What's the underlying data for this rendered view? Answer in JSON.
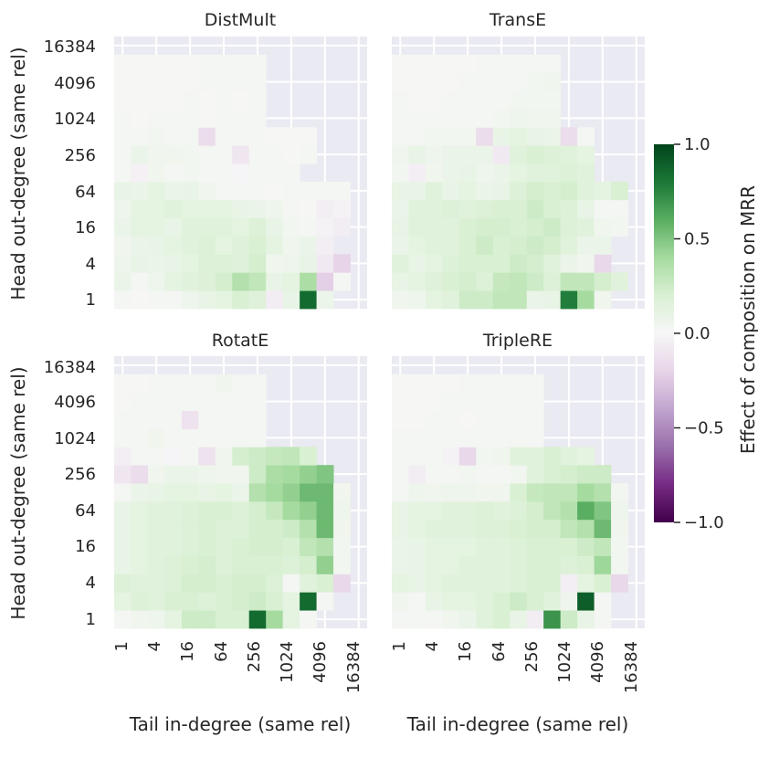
{
  "chart_data": {
    "type": "heatmap",
    "colormap": "PRGn",
    "vmin": -1.0,
    "vmax": 1.0,
    "ylabel": "Head out-degree (same rel)",
    "xlabel": "Tail in-degree (same rel)",
    "tick_labels": [
      "1",
      "4",
      "16",
      "64",
      "256",
      "1024",
      "4096",
      "16384"
    ],
    "colorbar": {
      "label": "Effect of composition on MRR",
      "ticks": [
        1.0,
        0.5,
        0.0,
        -0.5,
        -1.0
      ],
      "tick_labels": [
        "1.0",
        "0.5",
        "0.0",
        "−0.5",
        "−1.0"
      ]
    },
    "panels": [
      {
        "title": "DistMult",
        "rows": [
          [
            0.02,
            0.01,
            0.02,
            0.03,
            0.06,
            0.1,
            0.12,
            0.2,
            0.16,
            -0.06,
            0.1,
            0.85,
            0.07
          ],
          [
            0.08,
            0.03,
            0.06,
            0.12,
            0.15,
            0.17,
            0.22,
            0.35,
            0.3,
            0.1,
            0.12,
            0.38,
            -0.22,
            0.02
          ],
          [
            0.06,
            0.1,
            0.08,
            0.1,
            0.12,
            0.18,
            0.18,
            0.16,
            0.22,
            0.05,
            0.06,
            0.1,
            -0.08,
            -0.2
          ],
          [
            0.05,
            0.08,
            0.1,
            0.12,
            0.15,
            0.18,
            0.12,
            0.16,
            0.2,
            0.12,
            0.05,
            0.08,
            -0.05
          ],
          [
            0.08,
            0.12,
            0.12,
            0.1,
            0.15,
            0.15,
            0.15,
            0.12,
            0.18,
            0.1,
            0.04,
            0.02,
            -0.03,
            -0.06
          ],
          [
            0.06,
            0.12,
            0.12,
            0.15,
            0.12,
            0.12,
            0.12,
            0.1,
            0.08,
            0.06,
            0.03,
            0.01,
            -0.05,
            -0.03
          ],
          [
            0.1,
            0.08,
            0.12,
            0.08,
            0.1,
            0.05,
            0.03,
            0.02,
            0.02,
            0.01,
            0.02,
            0.02,
            0.03,
            0.02
          ],
          [
            0.02,
            -0.04,
            0.05,
            0.03,
            0.04,
            0.02,
            0.02,
            -0.02,
            0.02,
            0.02,
            0.02
          ],
          [
            0.03,
            0.08,
            0.05,
            0.05,
            0.04,
            0.02,
            0.02,
            -0.1,
            0.02,
            0.02,
            0.01,
            0.02
          ],
          [
            0.02,
            0.03,
            0.04,
            0.03,
            0.03,
            -0.15,
            0.02,
            0.02,
            0.02,
            0.01,
            0.01,
            0.01
          ],
          [
            0.02,
            0.01,
            0.02,
            0.02,
            0.02,
            0.01,
            0.02,
            0.02,
            0.02
          ],
          [
            0.01,
            0.01,
            0.01,
            0.01,
            0.02,
            0.01,
            0.02,
            0.01,
            0.02
          ],
          [
            0.01,
            0.01,
            0.01,
            0.01,
            0.01,
            0.02,
            0.02,
            0.03,
            0.02
          ],
          [
            0.01,
            0.01,
            0.01,
            0.01,
            0.01,
            0.02,
            0.02,
            0.02,
            0.02
          ]
        ]
      },
      {
        "title": "TransE",
        "rows": [
          [
            0.05,
            0.06,
            0.12,
            0.15,
            0.25,
            0.25,
            0.3,
            0.3,
            0.08,
            0.1,
            0.78,
            0.4,
            0.05
          ],
          [
            0.1,
            0.12,
            0.16,
            0.2,
            0.22,
            0.18,
            0.28,
            0.3,
            0.25,
            0.18,
            0.3,
            0.3,
            0.22,
            0.15
          ],
          [
            0.15,
            0.1,
            0.12,
            0.18,
            0.2,
            0.2,
            0.2,
            0.25,
            0.22,
            0.15,
            0.08,
            0.05,
            -0.18
          ],
          [
            0.08,
            0.12,
            0.15,
            0.15,
            0.2,
            0.25,
            0.2,
            0.22,
            0.25,
            0.22,
            0.15,
            0.08,
            0.08
          ],
          [
            0.1,
            0.15,
            0.15,
            0.15,
            0.2,
            0.22,
            0.22,
            0.2,
            0.22,
            0.25,
            0.18,
            0.15,
            0.05,
            0.04
          ],
          [
            0.08,
            0.15,
            0.15,
            0.18,
            0.15,
            0.18,
            0.2,
            0.2,
            0.25,
            0.2,
            0.18,
            0.1,
            0.02,
            0.02
          ],
          [
            0.1,
            0.1,
            0.15,
            0.1,
            0.12,
            0.08,
            0.1,
            0.18,
            0.22,
            0.2,
            0.22,
            0.15,
            0.12,
            0.2
          ],
          [
            0.04,
            -0.05,
            0.05,
            0.08,
            0.1,
            0.06,
            0.08,
            0.12,
            0.15,
            0.15,
            0.18,
            0.15
          ],
          [
            0.05,
            0.1,
            0.06,
            0.08,
            0.08,
            0.08,
            -0.08,
            0.15,
            0.2,
            0.18,
            0.15,
            0.12
          ],
          [
            0.02,
            0.03,
            0.04,
            0.04,
            0.04,
            -0.15,
            0.1,
            0.12,
            0.1,
            0.08,
            -0.15,
            0.02
          ],
          [
            0.02,
            0.02,
            0.02,
            0.02,
            0.02,
            0.03,
            0.04,
            0.06,
            0.05,
            0.05
          ],
          [
            0.02,
            0.01,
            0.01,
            0.02,
            0.02,
            0.02,
            0.03,
            0.04,
            0.04,
            0.04
          ],
          [
            0.01,
            0.01,
            0.01,
            0.01,
            0.02,
            0.02,
            0.03,
            0.03,
            0.04,
            0.05
          ],
          [
            0.01,
            0.01,
            0.01,
            0.01,
            0.01,
            0.02,
            0.02,
            0.02,
            0.03,
            0.03
          ]
        ]
      },
      {
        "title": "RotatE",
        "rows": [
          [
            0.03,
            0.05,
            0.06,
            0.12,
            0.25,
            0.25,
            0.2,
            0.2,
            0.85,
            0.4,
            0.12,
            0.02
          ],
          [
            0.12,
            0.18,
            0.15,
            0.2,
            0.2,
            0.18,
            0.2,
            0.22,
            0.25,
            0.2,
            0.12,
            0.85,
            0.02
          ],
          [
            0.18,
            0.15,
            0.15,
            0.18,
            0.22,
            0.22,
            0.2,
            0.22,
            0.22,
            0.18,
            0.02,
            0.15,
            0.2,
            -0.18
          ],
          [
            0.1,
            0.12,
            0.15,
            0.18,
            0.2,
            0.22,
            0.18,
            0.2,
            0.2,
            0.2,
            0.18,
            0.22,
            0.45,
            0.04
          ],
          [
            0.1,
            0.12,
            0.15,
            0.15,
            0.18,
            0.2,
            0.18,
            0.2,
            0.22,
            0.22,
            0.2,
            0.3,
            0.35,
            0.04
          ],
          [
            0.1,
            0.12,
            0.15,
            0.15,
            0.18,
            0.2,
            0.18,
            0.18,
            0.22,
            0.22,
            0.25,
            0.35,
            0.55,
            0.05
          ],
          [
            0.1,
            0.12,
            0.15,
            0.15,
            0.18,
            0.2,
            0.2,
            0.18,
            0.22,
            0.28,
            0.4,
            0.45,
            0.55,
            0.06
          ],
          [
            0.03,
            0.08,
            0.1,
            0.12,
            0.12,
            0.1,
            0.12,
            0.08,
            0.35,
            0.4,
            0.45,
            0.55,
            0.55,
            0.05
          ],
          [
            -0.1,
            -0.15,
            0.05,
            0.08,
            0.08,
            0.06,
            0.05,
            0.05,
            0.25,
            0.38,
            0.4,
            0.45,
            0.5
          ],
          [
            -0.05,
            0.02,
            0.03,
            -0.02,
            0.03,
            -0.12,
            0.05,
            0.22,
            0.25,
            0.28,
            0.3,
            0.2
          ],
          [
            0.02,
            0.03,
            0.05,
            0.03,
            0.03,
            0.03,
            0.03,
            0.02,
            0.02
          ],
          [
            0.02,
            0.02,
            0.03,
            0.02,
            -0.12,
            0.02,
            0.02,
            0.02,
            0.02
          ],
          [
            0.01,
            0.02,
            0.02,
            0.02,
            0.02,
            0.02,
            0.03,
            0.02,
            0.02
          ],
          [
            0.01,
            0.01,
            0.02,
            0.02,
            0.02,
            0.02,
            0.05,
            0.03,
            0.03
          ]
        ]
      },
      {
        "title": "TripleRE",
        "rows": [
          [
            0.02,
            0.03,
            0.02,
            0.05,
            0.08,
            0.15,
            0.2,
            0.1,
            -0.06,
            0.7,
            0.25,
            0.1,
            0.02
          ],
          [
            0.05,
            0.03,
            0.1,
            0.12,
            0.12,
            0.15,
            0.2,
            0.25,
            0.2,
            0.15,
            0.06,
            0.9,
            0.03
          ],
          [
            0.12,
            0.1,
            0.12,
            0.15,
            0.15,
            0.15,
            0.15,
            0.18,
            0.2,
            0.2,
            -0.05,
            0.12,
            0.2,
            -0.18
          ],
          [
            0.08,
            0.1,
            0.12,
            0.12,
            0.15,
            0.15,
            0.15,
            0.18,
            0.2,
            0.2,
            0.18,
            0.2,
            0.42,
            0.04
          ],
          [
            0.08,
            0.1,
            0.12,
            0.12,
            0.12,
            0.15,
            0.15,
            0.18,
            0.2,
            0.2,
            0.2,
            0.25,
            0.3,
            0.04
          ],
          [
            0.1,
            0.12,
            0.15,
            0.15,
            0.15,
            0.18,
            0.18,
            0.2,
            0.22,
            0.22,
            0.3,
            0.35,
            0.55,
            0.05
          ],
          [
            0.1,
            0.12,
            0.12,
            0.15,
            0.15,
            0.18,
            0.15,
            0.18,
            0.22,
            0.3,
            0.35,
            0.6,
            0.5,
            0.06
          ],
          [
            0.02,
            0.06,
            0.05,
            0.06,
            0.06,
            0.05,
            0.05,
            0.2,
            0.28,
            0.3,
            0.3,
            0.4,
            0.35,
            0.04
          ],
          [
            0.02,
            -0.06,
            0.03,
            0.03,
            0.04,
            0.03,
            0.03,
            0.04,
            0.15,
            0.2,
            0.22,
            0.25,
            0.25
          ],
          [
            0.02,
            0.02,
            0.03,
            -0.03,
            -0.18,
            0.04,
            0.05,
            0.15,
            0.15,
            0.2,
            0.15,
            0.12
          ],
          [
            0.02,
            0.02,
            0.02,
            0.02,
            0.02,
            0.03,
            0.03,
            0.03,
            0.02
          ],
          [
            0.01,
            0.01,
            0.02,
            0.02,
            0.01,
            0.02,
            0.02,
            0.02,
            0.02
          ],
          [
            0.01,
            0.01,
            0.01,
            0.02,
            0.02,
            0.02,
            0.02,
            0.02,
            0.02
          ],
          [
            0.01,
            0.01,
            0.01,
            0.01,
            0.02,
            0.02,
            0.02,
            0.02,
            0.02
          ]
        ]
      }
    ]
  }
}
